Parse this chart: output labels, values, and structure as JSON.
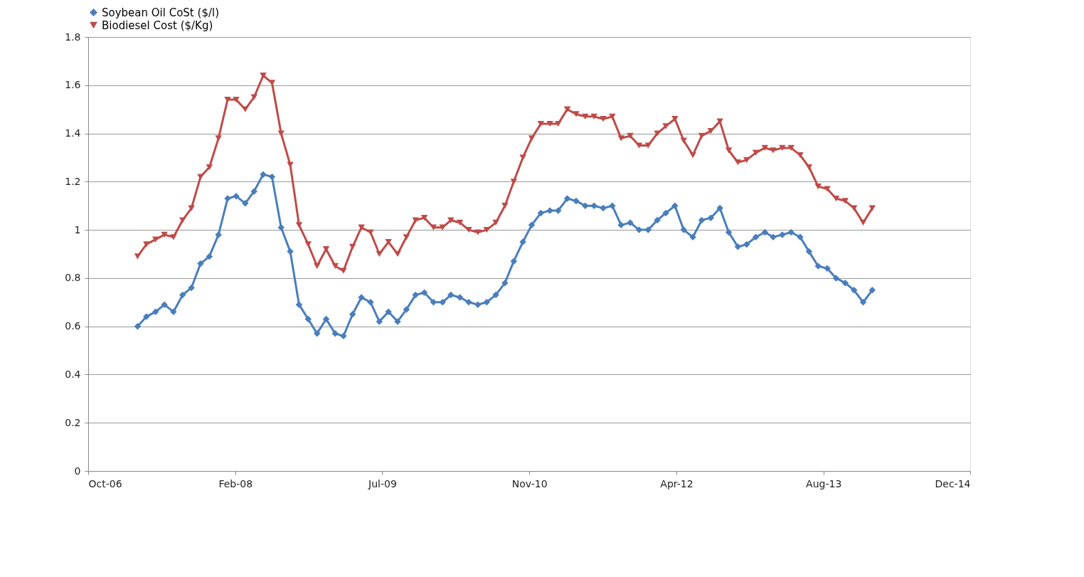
{
  "chart_data": {
    "type": "line",
    "x": [
      "2007-04",
      "2007-05",
      "2007-06",
      "2007-07",
      "2007-08",
      "2007-09",
      "2007-10",
      "2007-11",
      "2007-12",
      "2008-01",
      "2008-02",
      "2008-03",
      "2008-04",
      "2008-05",
      "2008-06",
      "2008-07",
      "2008-08",
      "2008-09",
      "2008-10",
      "2008-11",
      "2008-12",
      "2009-01",
      "2009-02",
      "2009-03",
      "2009-04",
      "2009-05",
      "2009-06",
      "2009-07",
      "2009-08",
      "2009-09",
      "2009-10",
      "2009-11",
      "2009-12",
      "2010-01",
      "2010-02",
      "2010-03",
      "2010-04",
      "2010-05",
      "2010-06",
      "2010-07",
      "2010-08",
      "2010-09",
      "2010-10",
      "2010-11",
      "2010-12",
      "2011-01",
      "2011-02",
      "2011-03",
      "2011-04",
      "2011-05",
      "2011-06",
      "2011-07",
      "2011-08",
      "2011-09",
      "2011-10",
      "2011-11",
      "2011-12",
      "2012-01",
      "2012-02",
      "2012-03",
      "2012-04",
      "2012-05",
      "2012-06",
      "2012-07",
      "2012-08",
      "2012-09",
      "2012-10",
      "2012-11",
      "2012-12",
      "2013-01",
      "2013-02",
      "2013-03",
      "2013-04",
      "2013-05",
      "2013-06",
      "2013-07",
      "2013-08",
      "2013-09",
      "2013-10",
      "2013-11",
      "2013-12",
      "2014-01",
      "2014-02"
    ],
    "series": [
      {
        "name": "Soybean Oil CoSt ($/l)",
        "color": "#4a7ebb",
        "marker": "diamond",
        "values": [
          0.6,
          0.64,
          0.66,
          0.69,
          0.66,
          0.73,
          0.76,
          0.86,
          0.89,
          0.98,
          1.13,
          1.14,
          1.11,
          1.16,
          1.23,
          1.22,
          1.01,
          0.91,
          0.69,
          0.63,
          0.57,
          0.63,
          0.57,
          0.56,
          0.65,
          0.72,
          0.7,
          0.62,
          0.66,
          0.62,
          0.67,
          0.73,
          0.74,
          0.7,
          0.7,
          0.73,
          0.72,
          0.7,
          0.69,
          0.7,
          0.73,
          0.78,
          0.87,
          0.95,
          1.02,
          1.07,
          1.08,
          1.08,
          1.13,
          1.12,
          1.1,
          1.1,
          1.09,
          1.1,
          1.02,
          1.03,
          1.0,
          1.0,
          1.04,
          1.07,
          1.1,
          1.0,
          0.97,
          1.04,
          1.05,
          1.09,
          0.99,
          0.93,
          0.94,
          0.97,
          0.99,
          0.97,
          0.98,
          0.99,
          0.97,
          0.91,
          0.85,
          0.84,
          0.8,
          0.78,
          0.75,
          0.7,
          0.75
        ]
      },
      {
        "name": "Biodiesel Cost ($/Kg)",
        "color": "#be4b48",
        "marker": "triangle",
        "values": [
          0.89,
          0.94,
          0.96,
          0.98,
          0.97,
          1.04,
          1.09,
          1.22,
          1.26,
          1.38,
          1.54,
          1.54,
          1.5,
          1.55,
          1.64,
          1.61,
          1.4,
          1.27,
          1.02,
          0.94,
          0.85,
          0.92,
          0.85,
          0.83,
          0.93,
          1.01,
          0.99,
          0.9,
          0.95,
          0.9,
          0.97,
          1.04,
          1.05,
          1.01,
          1.01,
          1.04,
          1.03,
          1.0,
          0.99,
          1.0,
          1.03,
          1.1,
          1.2,
          1.3,
          1.38,
          1.44,
          1.44,
          1.44,
          1.5,
          1.48,
          1.47,
          1.47,
          1.46,
          1.47,
          1.38,
          1.39,
          1.35,
          1.35,
          1.4,
          1.43,
          1.46,
          1.37,
          1.31,
          1.39,
          1.41,
          1.45,
          1.33,
          1.28,
          1.29,
          1.32,
          1.34,
          1.33,
          1.34,
          1.34,
          1.31,
          1.26,
          1.18,
          1.17,
          1.13,
          1.12,
          1.09,
          1.03,
          1.09
        ]
      }
    ],
    "xlim": [
      "2006-10-15",
      "2014-12-31"
    ],
    "xticks": [
      {
        "value": "2006-10-15",
        "label": "Oct-06"
      },
      {
        "value": "2008-02-27",
        "label": "Feb-08"
      },
      {
        "value": "2009-07-11",
        "label": "Jul-09"
      },
      {
        "value": "2010-11-23",
        "label": "Nov-10"
      },
      {
        "value": "2012-04-06",
        "label": "Apr-12"
      },
      {
        "value": "2013-08-19",
        "label": "Aug-13"
      },
      {
        "value": "2014-12-31",
        "label": "Dec-14"
      }
    ],
    "ylim": [
      0,
      1.8
    ],
    "yticks": [
      0,
      0.2,
      0.4,
      0.6,
      0.8,
      1,
      1.2,
      1.4,
      1.6,
      1.8
    ],
    "grid": "y",
    "legend": "top",
    "line_style": "solid"
  }
}
